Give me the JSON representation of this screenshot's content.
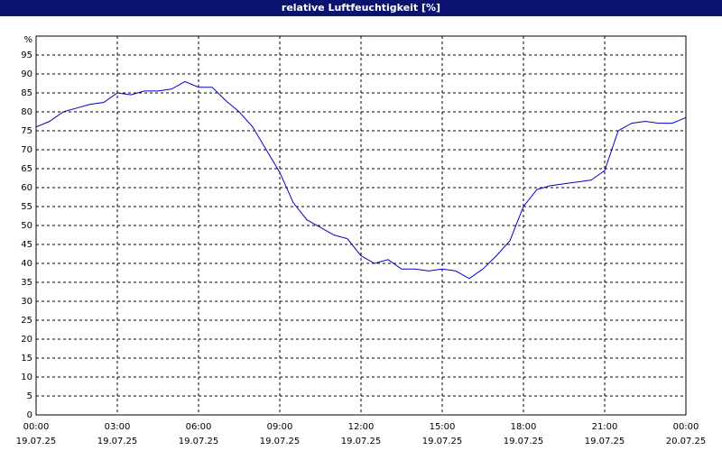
{
  "chart_data": {
    "type": "line",
    "title": "relative Luftfeuchtigkeit [%]",
    "y_label": "%",
    "x": [
      0,
      0.5,
      1,
      1.5,
      2,
      2.5,
      3,
      3.5,
      4,
      4.5,
      5,
      5.5,
      6,
      6.5,
      7,
      7.5,
      8,
      8.5,
      9,
      9.5,
      10,
      10.5,
      11,
      11.5,
      12,
      12.5,
      13,
      13.5,
      14,
      14.5,
      15,
      15.5,
      16,
      16.5,
      17,
      17.5,
      18,
      18.5,
      19,
      19.5,
      20,
      20.5,
      21,
      21.5,
      22,
      22.5,
      23,
      23.5,
      24
    ],
    "series": [
      {
        "name": "relative Luftfeuchtigkeit",
        "color": "#0000c8",
        "values": [
          76,
          77.5,
          80,
          81,
          82,
          82.5,
          85,
          84.5,
          85.5,
          85.5,
          86,
          88,
          86.5,
          86.5,
          83,
          80,
          76,
          70,
          64,
          56,
          51.5,
          49.5,
          47.5,
          46.5,
          42,
          40,
          41,
          38.5,
          38.5,
          38,
          38.5,
          38,
          36,
          38.5,
          42,
          46,
          55,
          59.5,
          60.5,
          61,
          61.5,
          62,
          64.5,
          75,
          77,
          77.5,
          77,
          77,
          78.5
        ]
      }
    ],
    "xlim": [
      0,
      24
    ],
    "xticks": [
      {
        "value": 0,
        "label": [
          "00:00",
          "19.07.25"
        ]
      },
      {
        "value": 3,
        "label": [
          "03:00",
          "19.07.25"
        ]
      },
      {
        "value": 6,
        "label": [
          "06:00",
          "19.07.25"
        ]
      },
      {
        "value": 9,
        "label": [
          "09:00",
          "19.07.25"
        ]
      },
      {
        "value": 12,
        "label": [
          "12:00",
          "19.07.25"
        ]
      },
      {
        "value": 15,
        "label": [
          "15:00",
          "19.07.25"
        ]
      },
      {
        "value": 18,
        "label": [
          "18:00",
          "19.07.25"
        ]
      },
      {
        "value": 21,
        "label": [
          "21:00",
          "19.07.25"
        ]
      },
      {
        "value": 24,
        "label": [
          "00:00",
          "20.07.25"
        ]
      }
    ],
    "ylim": [
      0,
      100
    ],
    "yticks": [
      0,
      5,
      10,
      15,
      20,
      25,
      30,
      35,
      40,
      45,
      50,
      55,
      60,
      65,
      70,
      75,
      80,
      85,
      90,
      95
    ],
    "grid": true
  }
}
